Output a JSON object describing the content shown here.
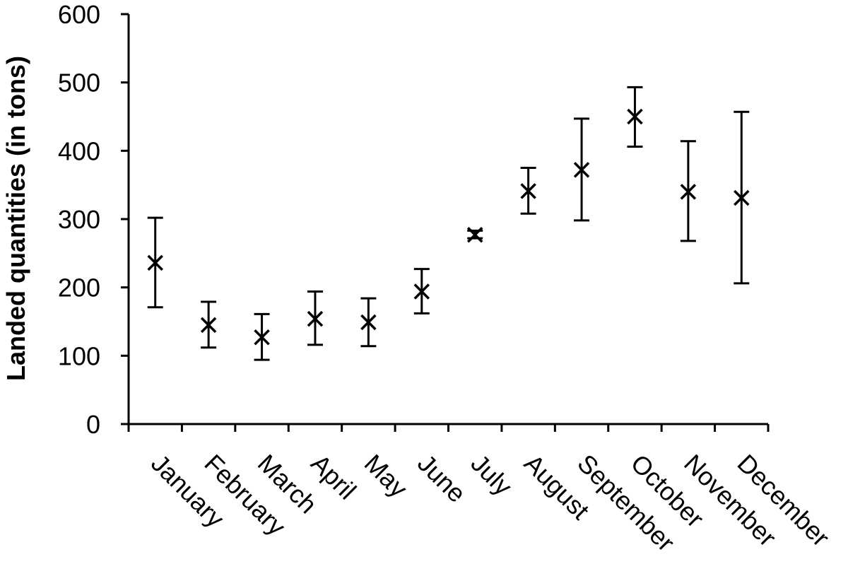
{
  "chart_data": {
    "type": "scatter",
    "title": "",
    "xlabel": "",
    "ylabel": "Landed quantities (in tons)",
    "ylim": [
      0,
      600
    ],
    "yticks": [
      0,
      100,
      200,
      300,
      400,
      500,
      600
    ],
    "categories": [
      "January",
      "February",
      "March",
      "April",
      "May",
      "June",
      "July",
      "August",
      "September",
      "October",
      "November",
      "December"
    ],
    "series": [
      {
        "marker": "x",
        "values": [
          236,
          145,
          127,
          154,
          149,
          194,
          277,
          341,
          372,
          450,
          340,
          331
        ],
        "error_low": [
          171,
          112,
          94,
          116,
          114,
          162,
          272,
          308,
          298,
          406,
          268,
          206
        ],
        "error_high": [
          302,
          179,
          161,
          194,
          184,
          227,
          283,
          375,
          447,
          493,
          414,
          457
        ]
      }
    ],
    "grid": false,
    "legend": "none",
    "colors": {
      "marks": "#000000",
      "background": "#ffffff"
    }
  }
}
